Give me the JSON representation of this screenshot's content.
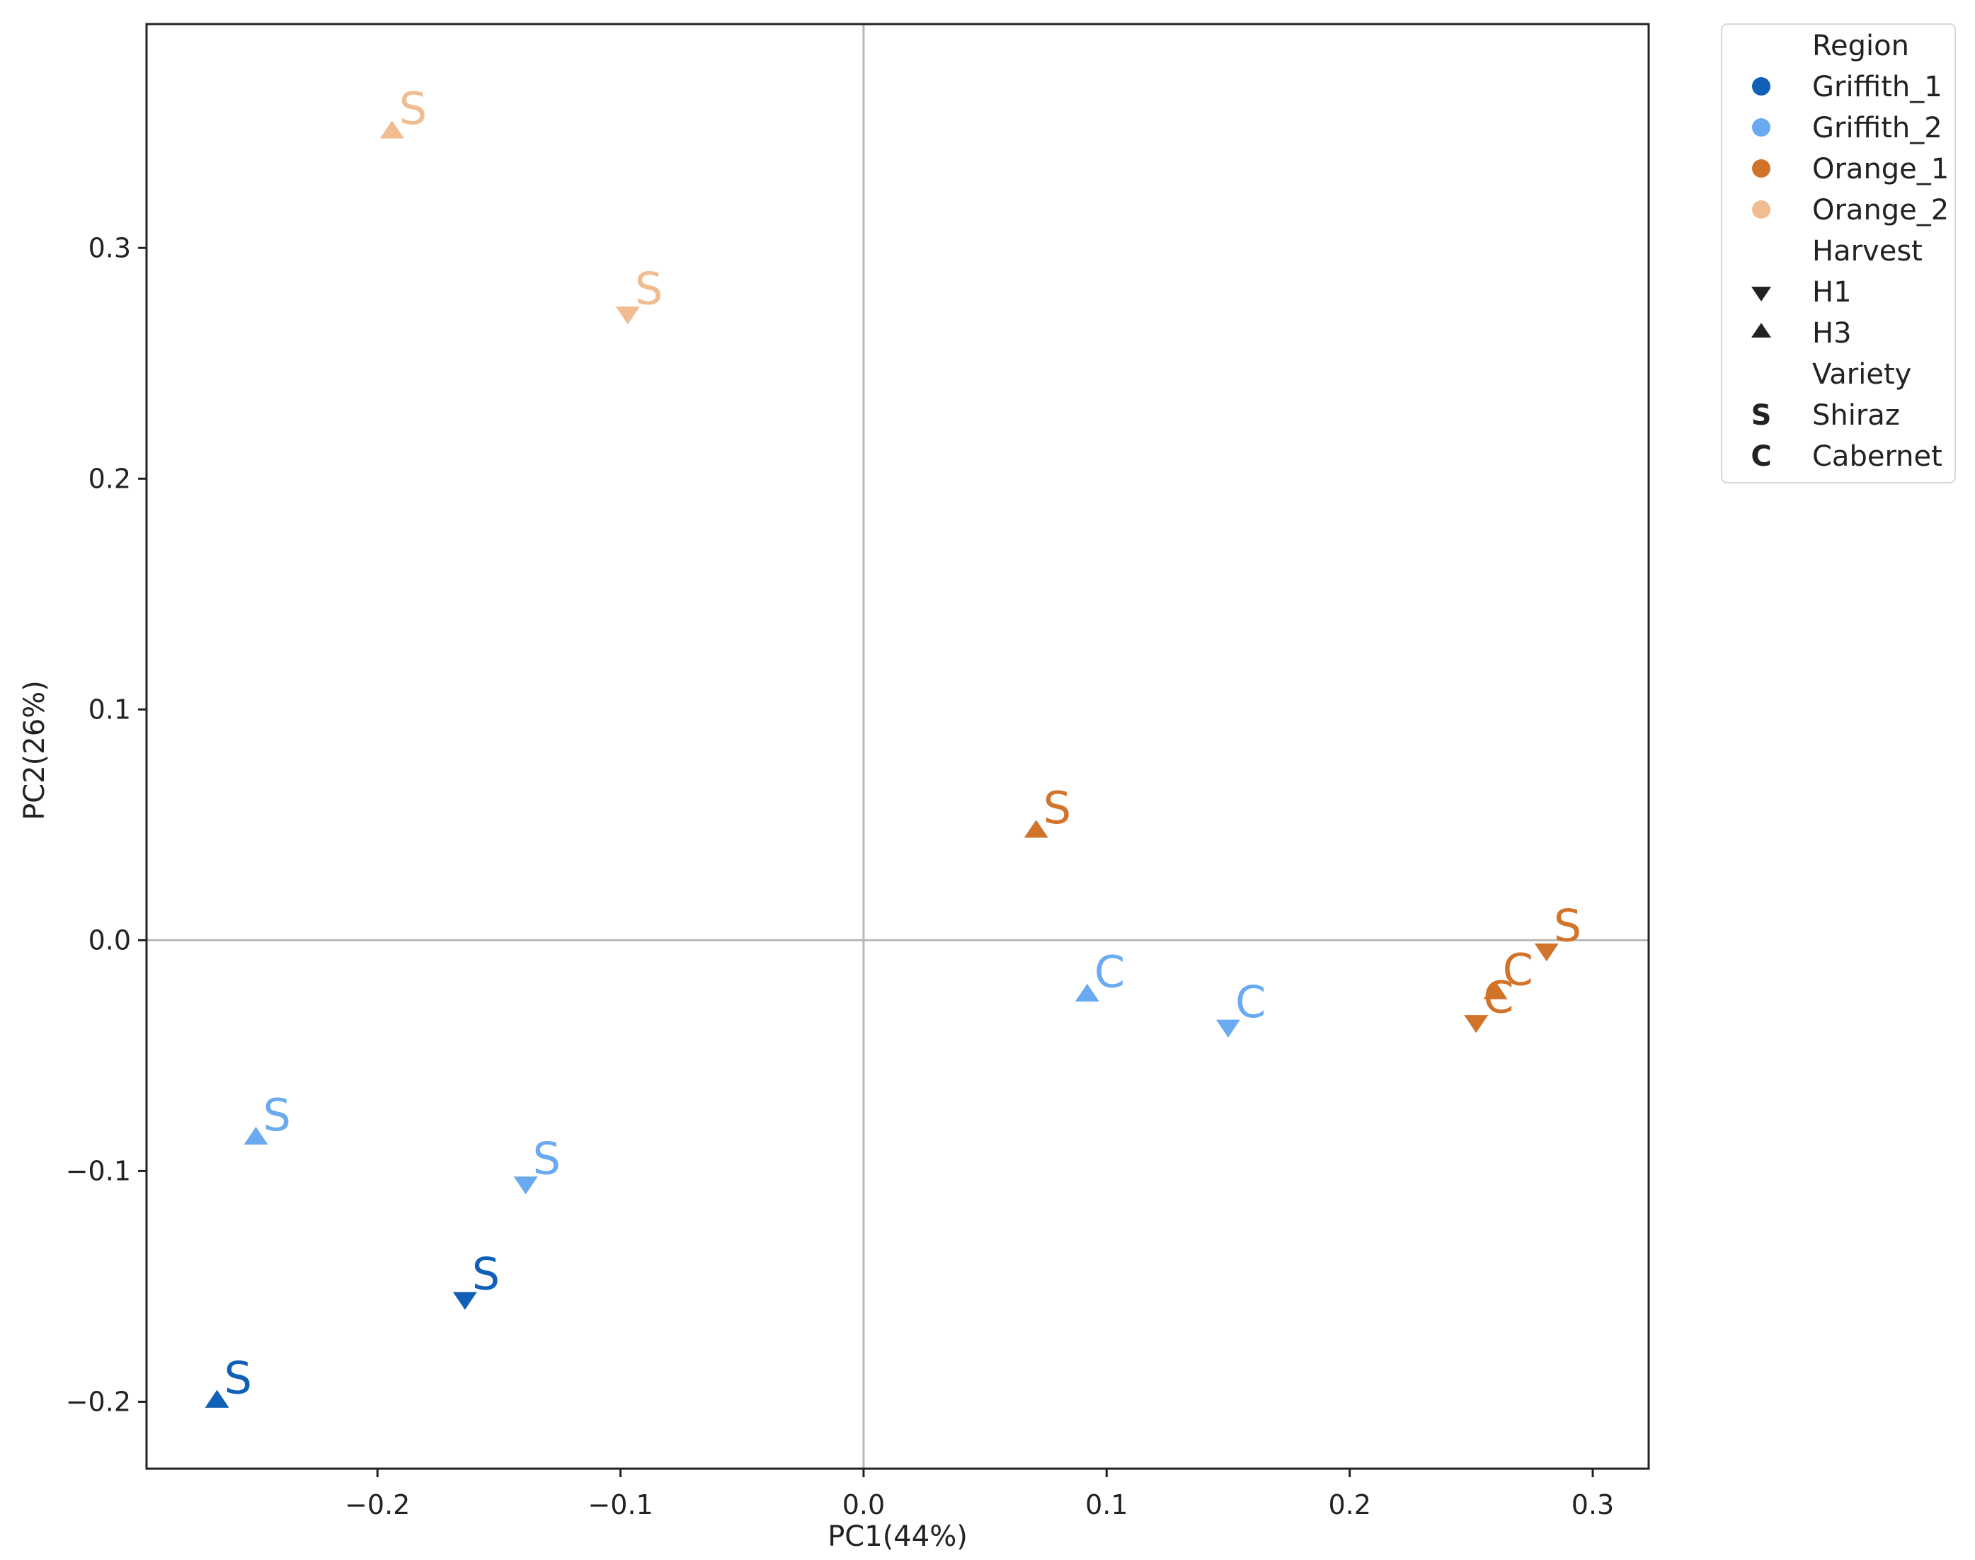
{
  "chart_data": {
    "type": "scatter",
    "xlabel": "PC1(44%)",
    "ylabel": "PC2(26%)",
    "xlim": [
      -0.295,
      0.323
    ],
    "ylim": [
      -0.229,
      0.397
    ],
    "xticks": [
      -0.2,
      -0.1,
      0.0,
      0.1,
      0.2,
      0.3
    ],
    "xtick_labels": [
      "−0.2",
      "−0.1",
      "0.0",
      "0.1",
      "0.2",
      "0.3"
    ],
    "yticks": [
      -0.2,
      -0.1,
      0.0,
      0.1,
      0.2,
      0.3
    ],
    "ytick_labels": [
      "−0.2",
      "−0.1",
      "0.0",
      "0.1",
      "0.2",
      "0.3"
    ],
    "reference_lines": {
      "x": 0.0,
      "y": 0.0
    },
    "grid": false,
    "legend_position": "outside-right-top",
    "region_colors": {
      "Griffith_1": "#1060b8",
      "Griffith_2": "#6aaaf0",
      "Orange_1": "#d2732a",
      "Orange_2": "#f0bc90"
    },
    "points": [
      {
        "x": -0.194,
        "y": 0.35,
        "region": "Orange_2",
        "harvest": "H3",
        "variety": "S"
      },
      {
        "x": -0.097,
        "y": 0.272,
        "region": "Orange_2",
        "harvest": "H1",
        "variety": "S"
      },
      {
        "x": 0.071,
        "y": 0.047,
        "region": "Orange_1",
        "harvest": "H3",
        "variety": "S"
      },
      {
        "x": 0.281,
        "y": -0.004,
        "region": "Orange_1",
        "harvest": "H1",
        "variety": "S"
      },
      {
        "x": 0.26,
        "y": -0.023,
        "region": "Orange_1",
        "harvest": "H3",
        "variety": "C"
      },
      {
        "x": 0.252,
        "y": -0.035,
        "region": "Orange_1",
        "harvest": "H1",
        "variety": "C"
      },
      {
        "x": 0.092,
        "y": -0.024,
        "region": "Griffith_2",
        "harvest": "H3",
        "variety": "C"
      },
      {
        "x": 0.15,
        "y": -0.037,
        "region": "Griffith_2",
        "harvest": "H1",
        "variety": "C"
      },
      {
        "x": -0.25,
        "y": -0.086,
        "region": "Griffith_2",
        "harvest": "H3",
        "variety": "S"
      },
      {
        "x": -0.139,
        "y": -0.105,
        "region": "Griffith_2",
        "harvest": "H1",
        "variety": "S"
      },
      {
        "x": -0.164,
        "y": -0.155,
        "region": "Griffith_1",
        "harvest": "H1",
        "variety": "S"
      },
      {
        "x": -0.266,
        "y": -0.2,
        "region": "Griffith_1",
        "harvest": "H3",
        "variety": "S"
      }
    ],
    "legend": {
      "region_title": "Region",
      "regions": [
        "Griffith_1",
        "Griffith_2",
        "Orange_1",
        "Orange_2"
      ],
      "harvest_title": "Harvest",
      "harvests": [
        {
          "label": "H1",
          "marker": "triangle-down"
        },
        {
          "label": "H3",
          "marker": "triangle-up"
        }
      ],
      "variety_title": "Variety",
      "varieties": [
        {
          "symbol": "S",
          "label": "Shiraz"
        },
        {
          "symbol": "C",
          "label": "Cabernet"
        }
      ],
      "marker_color": "#222222"
    }
  }
}
